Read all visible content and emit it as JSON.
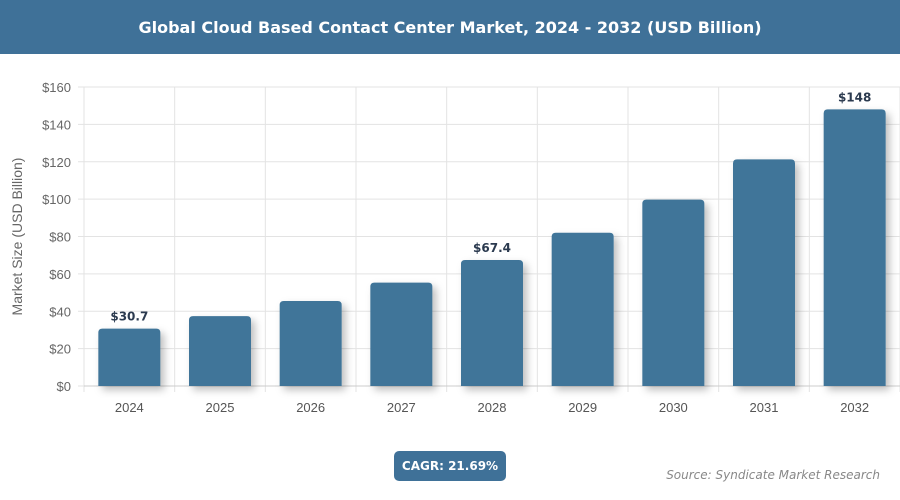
{
  "chart_data": {
    "type": "bar",
    "title": "Global Cloud Based Contact Center Market, 2024 - 2032 (USD Billion)",
    "ylabel": "Market Size (USD Billion)",
    "xlabel": "",
    "categories": [
      "2024",
      "2025",
      "2026",
      "2027",
      "2028",
      "2029",
      "2030",
      "2031",
      "2032"
    ],
    "values": [
      30.7,
      37.4,
      45.5,
      55.3,
      67.4,
      82.0,
      99.7,
      121.3,
      148
    ],
    "data_labels": {
      "0": "$30.7",
      "4": "$67.4",
      "8": "$148"
    },
    "ylim": [
      0,
      160
    ],
    "yticks": [
      0,
      20,
      40,
      60,
      80,
      100,
      120,
      140,
      160
    ],
    "ytick_labels": [
      "$0",
      "$20",
      "$40",
      "$60",
      "$80",
      "$100",
      "$120",
      "$140",
      "$160"
    ],
    "grid": true,
    "bar_color": "#3f7599"
  },
  "cagr_label": "CAGR: 21.69%",
  "source": "Source: Syndicate Market Research",
  "colors": {
    "header": "#3f7198",
    "accent": "#3f7599"
  }
}
